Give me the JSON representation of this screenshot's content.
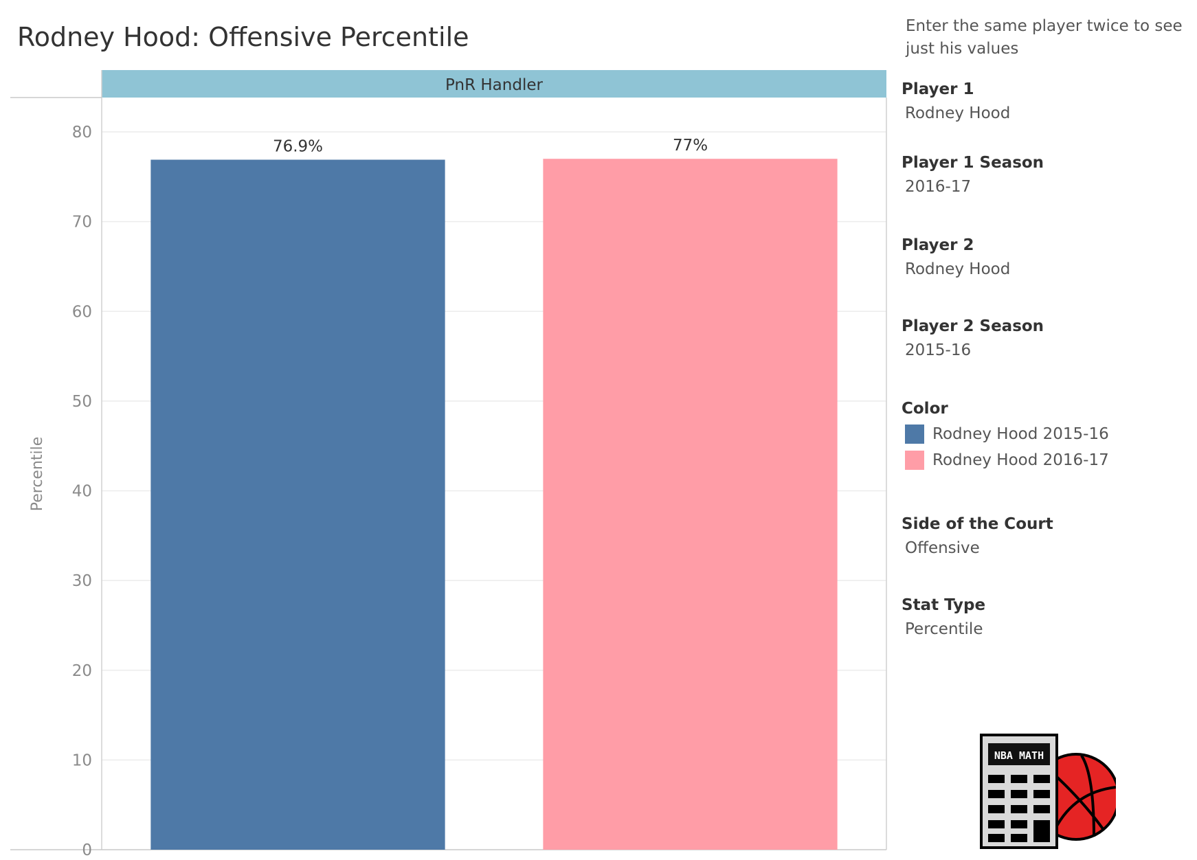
{
  "title": "Rodney Hood: Offensive Percentile",
  "chart_data": {
    "type": "bar",
    "panel": "PnR Handler",
    "categories": [
      "Rodney Hood 2015-16",
      "Rodney Hood 2016-17"
    ],
    "values": [
      76.9,
      77.0
    ],
    "value_labels": [
      "76.9%",
      "77%"
    ],
    "colors": [
      "#4e79a7",
      "#ff9da7"
    ],
    "ylabel": "Percentile",
    "xlabel": "",
    "ylim": [
      0,
      80
    ],
    "yticks": [
      0,
      10,
      20,
      30,
      40,
      50,
      60,
      70,
      80
    ],
    "grid": true,
    "legend_placement": "right"
  },
  "side_panel": {
    "note": "Enter the same player twice to see just his values",
    "filters": [
      {
        "label": "Player 1",
        "value": "Rodney Hood"
      },
      {
        "label": "Player 1 Season",
        "value": "2016-17"
      },
      {
        "label": "Player 2",
        "value": "Rodney Hood"
      },
      {
        "label": "Player 2 Season",
        "value": "2015-16"
      }
    ],
    "legend": {
      "title": "Color",
      "items": [
        {
          "label": "Rodney Hood 2015-16",
          "color": "#4e79a7"
        },
        {
          "label": "Rodney Hood 2016-17",
          "color": "#ff9da7"
        }
      ]
    },
    "filters2": [
      {
        "label": "Side of the Court",
        "value": "Offensive"
      },
      {
        "label": "Stat Type",
        "value": "Percentile"
      }
    ]
  },
  "logo": {
    "text": "NBA MATH",
    "icon": "calculator-basketball-icon"
  }
}
